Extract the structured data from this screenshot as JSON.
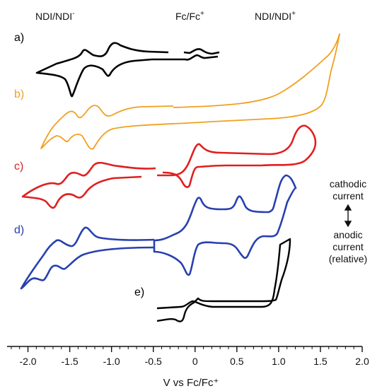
{
  "chart_data": {
    "type": "line",
    "xlabel": "V vs Fc/Fc⁺",
    "xlim": [
      -2.25,
      2.0
    ],
    "xticks": [
      -2.0,
      -1.5,
      -1.0,
      -0.5,
      0.0,
      0.5,
      1.0,
      1.5,
      2.0
    ],
    "xtick_labels": [
      "-2.0",
      "-1.5",
      "-1.0",
      "-0.5",
      "0",
      "0.5",
      "1.0",
      "1.5",
      "2.0"
    ],
    "top_labels": [
      {
        "text": "NDI/NDI",
        "sup": "-",
        "x": -1.1
      },
      {
        "text": "Fc/Fc",
        "sup": "+",
        "x": 0.1
      },
      {
        "text": "NDI/NDI",
        "sup": "+",
        "x": 1.08
      }
    ],
    "side_labels": {
      "top": [
        "cathodic",
        "current"
      ],
      "bottom": [
        "anodic",
        "current",
        "(relative)"
      ]
    },
    "series": [
      {
        "label": "a)",
        "color": "#000000",
        "baseline": 92,
        "amp": 30
      },
      {
        "label": "b)",
        "color": "#f0a020",
        "baseline": 160,
        "amp": 30
      },
      {
        "label": "c)",
        "color": "#e02020",
        "baseline": 250,
        "amp": 30
      },
      {
        "label": "d)",
        "color": "#2840b0",
        "baseline": 350,
        "amp": 30
      },
      {
        "label": "e)",
        "color": "#000000",
        "baseline": 445,
        "amp": 30
      }
    ]
  }
}
